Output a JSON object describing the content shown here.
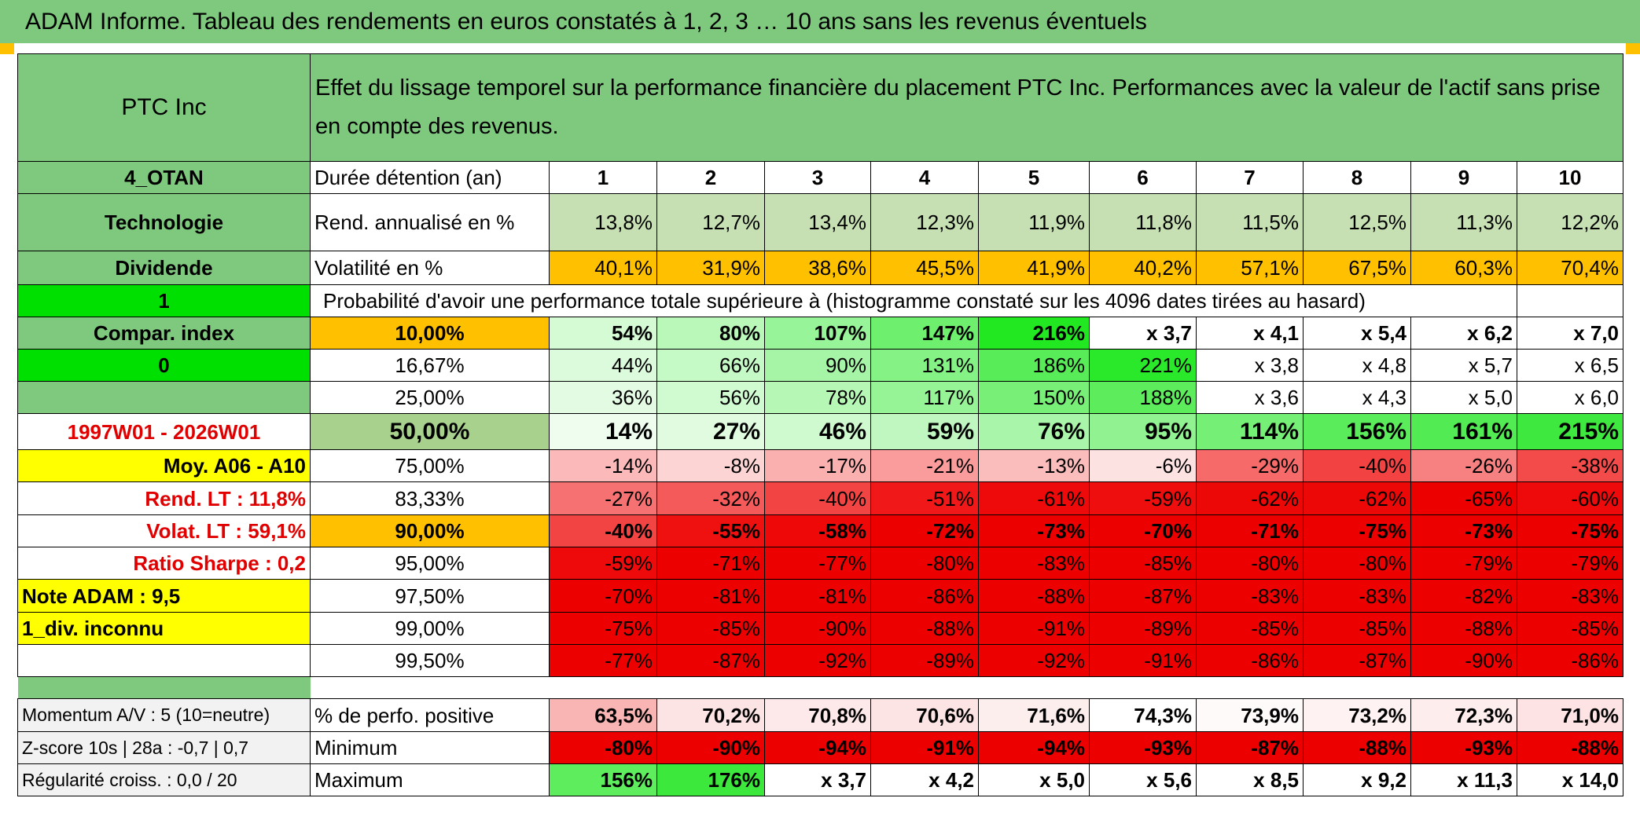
{
  "title": "ADAM Informe. Tableau des rendements en euros constatés à 1, 2, 3 … 10 ans sans les revenus éventuels",
  "header": {
    "asset": "PTC Inc",
    "description": "Effet du lissage temporel sur la performance financière du placement PTC Inc. Performances avec la valeur de l'actif sans prise en compte des revenus."
  },
  "left": {
    "code": "4_OTAN",
    "sector": "Technologie",
    "dividend": "Dividende",
    "one": "1",
    "compar": "Compar. index",
    "zero": "0",
    "period": "1997W01 - 2026W01",
    "moy": "Moy. A06 - A10",
    "rend": "Rend. LT :    11,8%",
    "volat": "Volat. LT :    59,1%",
    "sharpe": "Ratio Sharpe :    0,2",
    "note": "Note ADAM : 9,5",
    "div": "1_div. inconnu",
    "momentum": "Momentum A/V : 5 (10=neutre)",
    "zscore": "Z-score 10s | 28a : -0,7 | 0,7",
    "regul": "Régularité croiss. : 0,0 / 20"
  },
  "labels": {
    "duree": "Durée détention (an)",
    "rend": "Rend. annualisé en %",
    "vol": "Volatilité en %",
    "proba": "Probabilité d'avoir une performance totale supérieure à (histogramme constaté sur les 4096 dates tirées au hasard)",
    "pos": "% de perfo. positive",
    "min": "Minimum",
    "max": "Maximum"
  },
  "years": [
    "1",
    "2",
    "3",
    "4",
    "5",
    "6",
    "7",
    "8",
    "9",
    "10"
  ],
  "rend": [
    "13,8%",
    "12,7%",
    "13,4%",
    "12,3%",
    "11,9%",
    "11,8%",
    "11,5%",
    "12,5%",
    "11,3%",
    "12,2%"
  ],
  "vol": [
    "40,1%",
    "31,9%",
    "38,6%",
    "45,5%",
    "41,9%",
    "40,2%",
    "57,1%",
    "67,5%",
    "60,3%",
    "70,4%"
  ],
  "prob_rows": [
    {
      "p": "10,00%",
      "v": [
        "54%",
        "80%",
        "107%",
        "147%",
        "216%",
        "x 3,7",
        "x 4,1",
        "x 5,4",
        "x 6,2",
        "x 7,0"
      ]
    },
    {
      "p": "16,67%",
      "v": [
        "44%",
        "66%",
        "90%",
        "131%",
        "186%",
        "221%",
        "x 3,8",
        "x 4,8",
        "x 5,7",
        "x 6,5"
      ]
    },
    {
      "p": "25,00%",
      "v": [
        "36%",
        "56%",
        "78%",
        "117%",
        "150%",
        "188%",
        "x 3,6",
        "x 4,3",
        "x 5,0",
        "x 6,0"
      ]
    },
    {
      "p": "50,00%",
      "v": [
        "14%",
        "27%",
        "46%",
        "59%",
        "76%",
        "95%",
        "114%",
        "156%",
        "161%",
        "215%"
      ]
    },
    {
      "p": "75,00%",
      "v": [
        "-14%",
        "-8%",
        "-17%",
        "-21%",
        "-13%",
        "-6%",
        "-29%",
        "-40%",
        "-26%",
        "-38%"
      ]
    },
    {
      "p": "83,33%",
      "v": [
        "-27%",
        "-32%",
        "-40%",
        "-51%",
        "-61%",
        "-59%",
        "-62%",
        "-62%",
        "-65%",
        "-60%"
      ]
    },
    {
      "p": "90,00%",
      "v": [
        "-40%",
        "-55%",
        "-58%",
        "-72%",
        "-73%",
        "-70%",
        "-71%",
        "-75%",
        "-73%",
        "-75%"
      ]
    },
    {
      "p": "95,00%",
      "v": [
        "-59%",
        "-71%",
        "-77%",
        "-80%",
        "-83%",
        "-85%",
        "-80%",
        "-80%",
        "-79%",
        "-79%"
      ]
    },
    {
      "p": "97,50%",
      "v": [
        "-70%",
        "-81%",
        "-81%",
        "-86%",
        "-88%",
        "-87%",
        "-83%",
        "-83%",
        "-82%",
        "-83%"
      ]
    },
    {
      "p": "99,00%",
      "v": [
        "-75%",
        "-85%",
        "-90%",
        "-88%",
        "-91%",
        "-89%",
        "-85%",
        "-85%",
        "-88%",
        "-85%"
      ]
    },
    {
      "p": "99,50%",
      "v": [
        "-77%",
        "-87%",
        "-92%",
        "-89%",
        "-92%",
        "-91%",
        "-86%",
        "-87%",
        "-90%",
        "-86%"
      ]
    }
  ],
  "pos": [
    "63,5%",
    "70,2%",
    "70,8%",
    "70,6%",
    "71,6%",
    "74,3%",
    "73,9%",
    "73,2%",
    "72,3%",
    "71,0%"
  ],
  "min": [
    "-80%",
    "-90%",
    "-94%",
    "-91%",
    "-94%",
    "-93%",
    "-87%",
    "-88%",
    "-93%",
    "-88%"
  ],
  "max": [
    "156%",
    "176%",
    "x 3,7",
    "x 4,2",
    "x 5,0",
    "x 5,6",
    "x 8,5",
    "x 9,2",
    "x 11,3",
    "x 14,0"
  ],
  "colors": {
    "header_green": "#7fc97f",
    "bright_green": "#00e000",
    "yellow": "#ffff00",
    "orange": "#ffc000",
    "rend_green": "#c6e0b4",
    "red_text": "#e00000",
    "p_rows": [
      [
        "#d5fbd5",
        "#b9f8b9",
        "#98f498",
        "#6ef06e",
        "#22e822",
        "#ffffff",
        "#ffffff",
        "#ffffff",
        "#ffffff",
        "#ffffff"
      ],
      [
        "#dcfbdc",
        "#c5f9c5",
        "#a6f5a6",
        "#84f284",
        "#58ec58",
        "#2ae82a",
        "#ffffff",
        "#ffffff",
        "#ffffff",
        "#ffffff"
      ],
      [
        "#e2fbe2",
        "#d0fad0",
        "#b6f7b6",
        "#96f396",
        "#78f078",
        "#5cec5c",
        "#ffffff",
        "#ffffff",
        "#ffffff",
        "#ffffff"
      ],
      [
        "#effdef",
        "#e1fbe1",
        "#cff9cf",
        "#c0f7c0",
        "#a9f5a9",
        "#90f290",
        "#76ef76",
        "#5bec5b",
        "#53eb53",
        "#3fe83f"
      ],
      [
        "#fbb9b9",
        "#fcd4d4",
        "#fbb0b0",
        "#fa9c9c",
        "#fbbcbc",
        "#fde2e2",
        "#f66a6a",
        "#f34242",
        "#f78181",
        "#f34a4a"
      ],
      [
        "#f67272",
        "#f55a5a",
        "#f34444",
        "#f01818",
        "#ee0a0a",
        "#ee0e0e",
        "#ed0808",
        "#ed0808",
        "#ed0000",
        "#ee0a0a"
      ],
      [
        "#f34444",
        "#ef1010",
        "#ee0808",
        "#ec0000",
        "#ec0000",
        "#ec0000",
        "#ec0000",
        "#ec0000",
        "#ec0000",
        "#ec0000"
      ],
      [
        "#ee0a0a",
        "#ec0000",
        "#ec0000",
        "#ec0000",
        "#ec0000",
        "#ec0000",
        "#ec0000",
        "#ec0000",
        "#ec0000",
        "#ec0000"
      ],
      [
        "#ec0000",
        "#ec0000",
        "#ec0000",
        "#ec0000",
        "#ec0000",
        "#ec0000",
        "#ec0000",
        "#ec0000",
        "#ec0000",
        "#ec0000"
      ],
      [
        "#ec0000",
        "#ec0000",
        "#ec0000",
        "#ec0000",
        "#ec0000",
        "#ec0000",
        "#ec0000",
        "#ec0000",
        "#ec0000",
        "#ec0000"
      ],
      [
        "#ec0000",
        "#ec0000",
        "#ec0000",
        "#ec0000",
        "#ec0000",
        "#ec0000",
        "#ec0000",
        "#ec0000",
        "#ec0000",
        "#ec0000"
      ]
    ],
    "pos_colors": [
      "#f9b4b4",
      "#fde4e4",
      "#fde9e9",
      "#fde4e4",
      "#fdeeee",
      "#ffffff",
      "#fefafa",
      "#fef2f2",
      "#fdeded",
      "#fde3e3"
    ],
    "min_colors": [
      "#ec0000",
      "#ec0000",
      "#ec0000",
      "#ec0000",
      "#ec0000",
      "#ec0000",
      "#ec0000",
      "#ec0000",
      "#ec0000",
      "#ec0000"
    ],
    "max_colors": [
      "#5ded5d",
      "#3de83d",
      "#ffffff",
      "#ffffff",
      "#ffffff",
      "#ffffff",
      "#ffffff",
      "#ffffff",
      "#ffffff",
      "#ffffff"
    ]
  }
}
